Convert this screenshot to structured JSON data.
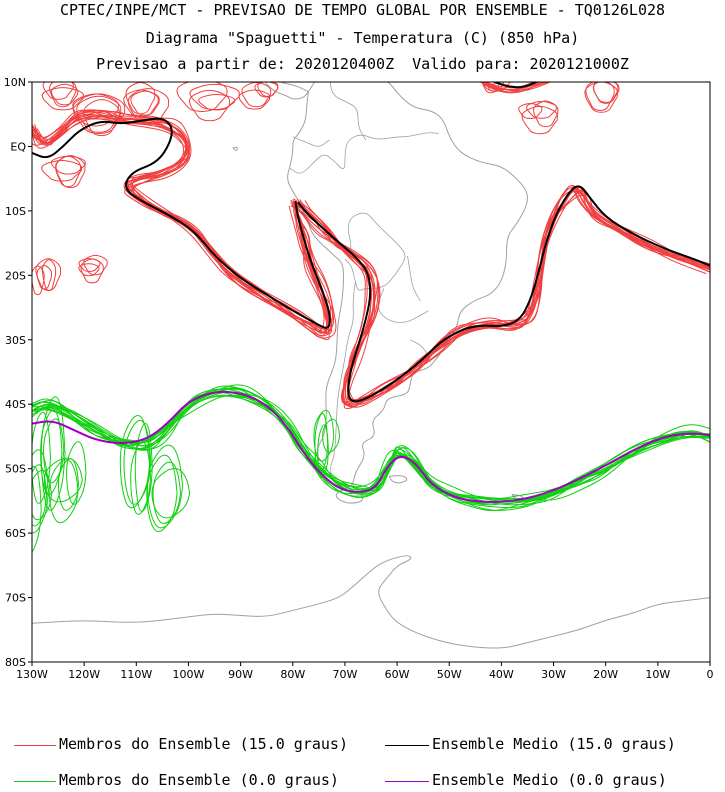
{
  "header": {
    "line1": "CPTEC/INPE/MCT - PREVISAO DE TEMPO GLOBAL POR ENSEMBLE - TQ0126L028",
    "line2": "Diagrama \"Spaguetti\" - Temperatura (C) (850 hPa)",
    "line3": "Previsao a partir de: 2020120400Z  Valido para: 2020121000Z"
  },
  "map": {
    "lon_range": [
      -130,
      0
    ],
    "lat_range": [
      -80,
      10
    ],
    "lat_labels": [
      "10N",
      "EQ",
      "10S",
      "20S",
      "30S",
      "40S",
      "50S",
      "60S",
      "70S",
      "80S"
    ],
    "lon_labels": [
      "130W",
      "120W",
      "110W",
      "100W",
      "90W",
      "80W",
      "70W",
      "60W",
      "50W",
      "40W",
      "30W",
      "20W",
      "10W",
      "0"
    ],
    "colors": {
      "members_15": "#f04040",
      "mean_15": "#000000",
      "members_0": "#10d010",
      "mean_0": "#a000c0",
      "coast": "#a0a0a0"
    }
  },
  "legend": {
    "members_15": "Membros do Ensemble (15.0 graus)",
    "mean_15": "Ensemble Medio (15.0 graus)",
    "members_0": "Membros do Ensemble (0.0 graus)",
    "mean_0": "Ensemble Medio (0.0 graus)"
  }
}
